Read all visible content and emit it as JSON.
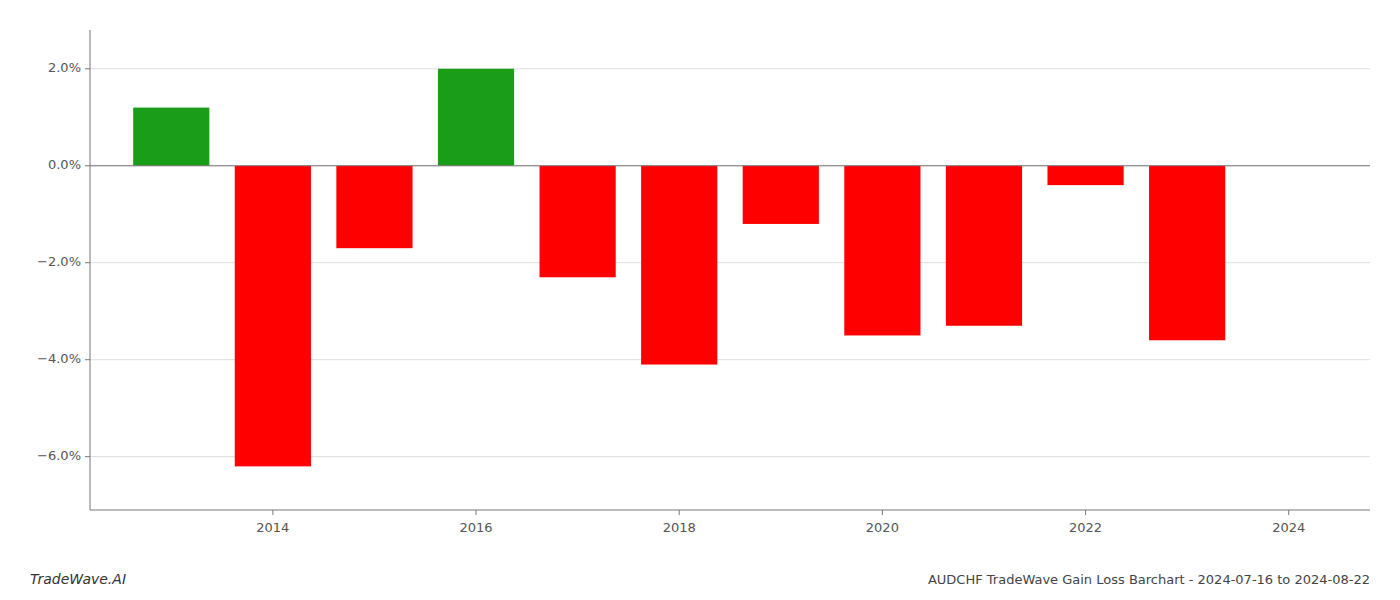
{
  "chart_data": {
    "type": "bar",
    "title": "AUDCHF TradeWave Gain Loss Barchart - 2024-07-16 to 2024-08-22",
    "annotations": [
      {
        "text": "TradeWave.AI"
      }
    ],
    "x": [
      2013,
      2014,
      2015,
      2016,
      2017,
      2018,
      2019,
      2020,
      2021,
      2022,
      2023
    ],
    "values": [
      0.012,
      -0.062,
      -0.017,
      0.02,
      -0.023,
      -0.041,
      -0.012,
      -0.035,
      -0.033,
      -0.004,
      -0.036
    ],
    "colors": [
      "#1a9e1a",
      "#ff0000",
      "#ff0000",
      "#1a9e1a",
      "#ff0000",
      "#ff0000",
      "#ff0000",
      "#ff0000",
      "#ff0000",
      "#ff0000",
      "#ff0000"
    ],
    "xlim": [
      2012.2,
      2024.8
    ],
    "xticks": [
      2014,
      2016,
      2018,
      2020,
      2022,
      2024
    ],
    "ylim": [
      -0.071,
      0.028
    ],
    "yticks": [
      {
        "value": -0.06,
        "label": "−6.0%"
      },
      {
        "value": -0.04,
        "label": "−4.0%"
      },
      {
        "value": -0.02,
        "label": "−2.0%"
      },
      {
        "value": 0,
        "label": "0.0%"
      },
      {
        "value": 0.02,
        "label": "2.0%"
      }
    ],
    "grid": true
  }
}
